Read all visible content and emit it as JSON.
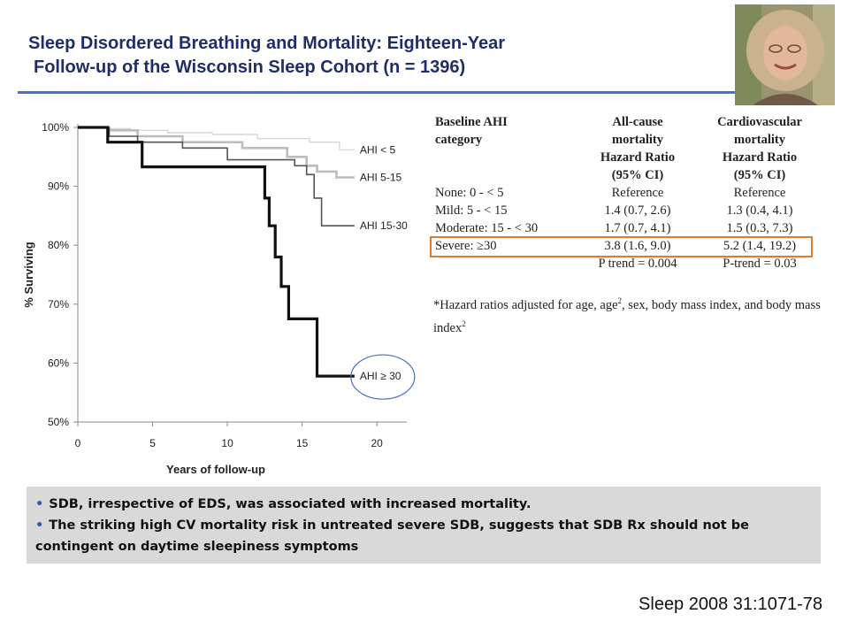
{
  "title": {
    "line1": "Sleep Disordered Breathing and Mortality: Eighteen-Year",
    "line2": "Follow-up of the Wisconsin Sleep Cohort (n = 1396)"
  },
  "accent_color": "#4a72c4",
  "title_color": "#1f2d6b",
  "chart_data": {
    "type": "line",
    "title": "",
    "xlabel": "Years of follow-up",
    "ylabel": "% Surviving",
    "xlim": [
      0,
      22
    ],
    "ylim": [
      50,
      100
    ],
    "x_ticks": [
      "0",
      "5",
      "10",
      "15",
      "20"
    ],
    "y_ticks": [
      "100%",
      "90%",
      "80%",
      "70%",
      "60%",
      "50%"
    ],
    "series": [
      {
        "name": "AHI < 5",
        "color": "#cfcfcf",
        "width": 1.2,
        "points": [
          [
            0,
            100
          ],
          [
            2,
            100
          ],
          [
            2,
            99.8
          ],
          [
            3.5,
            99.8
          ],
          [
            3.5,
            99.5
          ],
          [
            6,
            99.5
          ],
          [
            6,
            99.1
          ],
          [
            9,
            99.1
          ],
          [
            9,
            98.8
          ],
          [
            12,
            98.8
          ],
          [
            12,
            98.1
          ],
          [
            15.5,
            98.1
          ],
          [
            15.5,
            97.5
          ],
          [
            17.5,
            97.5
          ],
          [
            17.5,
            96.2
          ],
          [
            18.5,
            96.2
          ]
        ]
      },
      {
        "name": "AHI 5-15",
        "color": "#bdbdbd",
        "width": 2.6,
        "points": [
          [
            0,
            100
          ],
          [
            2,
            100
          ],
          [
            2,
            99.5
          ],
          [
            4,
            99.5
          ],
          [
            4,
            98.5
          ],
          [
            7,
            98.5
          ],
          [
            7,
            97.5
          ],
          [
            11,
            97.5
          ],
          [
            11,
            96.5
          ],
          [
            14,
            96.5
          ],
          [
            14,
            95
          ],
          [
            15.3,
            95
          ],
          [
            15.3,
            93.5
          ],
          [
            16,
            93.5
          ],
          [
            16,
            92.5
          ],
          [
            17.3,
            92.5
          ],
          [
            17.3,
            91.5
          ],
          [
            18.5,
            91.5
          ]
        ]
      },
      {
        "name": "AHI 15-30",
        "color": "#555555",
        "width": 1.6,
        "points": [
          [
            0,
            100
          ],
          [
            2.1,
            100
          ],
          [
            2.1,
            98.5
          ],
          [
            4,
            98.5
          ],
          [
            4,
            97.5
          ],
          [
            7,
            97.5
          ],
          [
            7,
            96.5
          ],
          [
            10,
            96.5
          ],
          [
            10,
            94.5
          ],
          [
            14.5,
            94.5
          ],
          [
            14.5,
            93.5
          ],
          [
            15.3,
            93.5
          ],
          [
            15.3,
            92
          ],
          [
            15.8,
            92
          ],
          [
            15.8,
            88
          ],
          [
            16.3,
            88
          ],
          [
            16.3,
            83.3
          ],
          [
            18.5,
            83.3
          ]
        ]
      },
      {
        "name": "AHI ≥ 30",
        "color": "#111111",
        "width": 3.2,
        "points": [
          [
            0,
            100
          ],
          [
            2,
            100
          ],
          [
            2,
            97.5
          ],
          [
            4.3,
            97.5
          ],
          [
            4.3,
            93.3
          ],
          [
            12.5,
            93.3
          ],
          [
            12.5,
            88
          ],
          [
            12.8,
            88
          ],
          [
            12.8,
            83.3
          ],
          [
            13.2,
            83.3
          ],
          [
            13.2,
            78
          ],
          [
            13.6,
            78
          ],
          [
            13.6,
            73
          ],
          [
            14.1,
            73
          ],
          [
            14.1,
            67.5
          ],
          [
            16,
            67.5
          ],
          [
            16,
            57.8
          ],
          [
            18.5,
            57.8
          ]
        ]
      }
    ],
    "annotation": "AHI ≥ 30 highlighted with circle"
  },
  "table": {
    "headers": [
      [
        "Baseline AHI",
        "category"
      ],
      [
        "All-cause",
        "mortality",
        "Hazard Ratio",
        "(95% CI)"
      ],
      [
        "Cardiovascular",
        "mortality",
        "Hazard Ratio",
        "(95% CI)"
      ]
    ],
    "rows": [
      [
        "None: 0 - < 5",
        "Reference",
        "Reference"
      ],
      [
        "Mild: 5 - < 15",
        "1.4 (0.7, 2.6)",
        "1.3 (0.4, 4.1)"
      ],
      [
        "Moderate: 15 - < 30",
        "1.7 (0.7, 4.1)",
        "1.5 (0.3, 7.3)"
      ],
      [
        "Severe: ≥30",
        "3.8 (1.6, 9.0)",
        "5.2 (1.4, 19.2)"
      ],
      [
        "",
        "P trend = 0.004",
        "P-trend = 0.03"
      ]
    ],
    "highlight_color": "#e07b2c",
    "footnote_a": "*Hazard ratios adjusted for age, age",
    "footnote_sup1": "2",
    "footnote_b": ", sex, body mass index, and body mass index",
    "footnote_sup2": "2"
  },
  "summary": {
    "bullet1": "SDB, irrespective of EDS, was associated with increased mortality.",
    "bullet2": "The striking high CV mortality risk in untreated severe SDB, suggests that SDB Rx should not be contingent on daytime sleepiness symptoms"
  },
  "citation": "Sleep 2008 31:1071-78"
}
